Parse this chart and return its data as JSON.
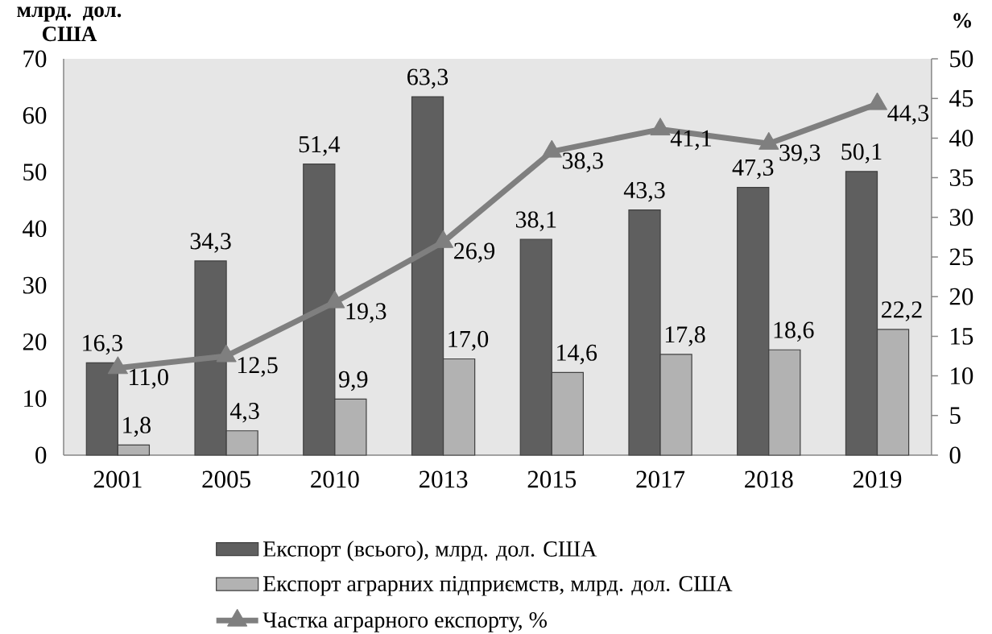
{
  "chart_data": {
    "type": "bar",
    "ylabel": "млрд. дол. США",
    "y2label": "%",
    "categories": [
      "2001",
      "2005",
      "2010",
      "2013",
      "2015",
      "2017",
      "2018",
      "2019"
    ],
    "series": [
      {
        "name": "Експорт (всього), млрд. дол. США",
        "color": "#5f5f5f",
        "values": [
          16.3,
          34.3,
          51.4,
          63.3,
          38.1,
          43.3,
          47.3,
          50.1
        ],
        "value_labels": [
          "16,3",
          "34,3",
          "51,4",
          "63,3",
          "38,1",
          "43,3",
          "47,3",
          "50,1"
        ]
      },
      {
        "name": "Експорт аграрних підприємств, млрд. дол. США",
        "color": "#b2b2b2",
        "values": [
          1.8,
          4.3,
          9.9,
          17.0,
          14.6,
          17.8,
          18.6,
          22.2
        ],
        "value_labels": [
          "1,8",
          "4,3",
          "9,9",
          "17,0",
          "14,6",
          "17,8",
          "18,6",
          "22,2"
        ]
      },
      {
        "name": "Частка аграрного експорту, %",
        "type": "line",
        "axis": "y2",
        "color": "#7f7f7f",
        "values": [
          11.0,
          12.5,
          19.3,
          26.9,
          38.3,
          41.1,
          39.3,
          44.3
        ],
        "value_labels": [
          "11,0",
          "12,5",
          "19,3",
          "26,9",
          "38,3",
          "41,1",
          "39,3",
          "44,3"
        ]
      }
    ],
    "ylim": [
      0,
      70
    ],
    "yticks": [
      0,
      10,
      20,
      30,
      40,
      50,
      60,
      70
    ],
    "y2lim": [
      0,
      50
    ],
    "y2ticks": [
      0,
      5,
      10,
      15,
      20,
      25,
      30,
      35,
      40,
      45,
      50
    ],
    "marker": "triangle",
    "line_style": "solid",
    "grid": false,
    "legend": "bottom"
  }
}
